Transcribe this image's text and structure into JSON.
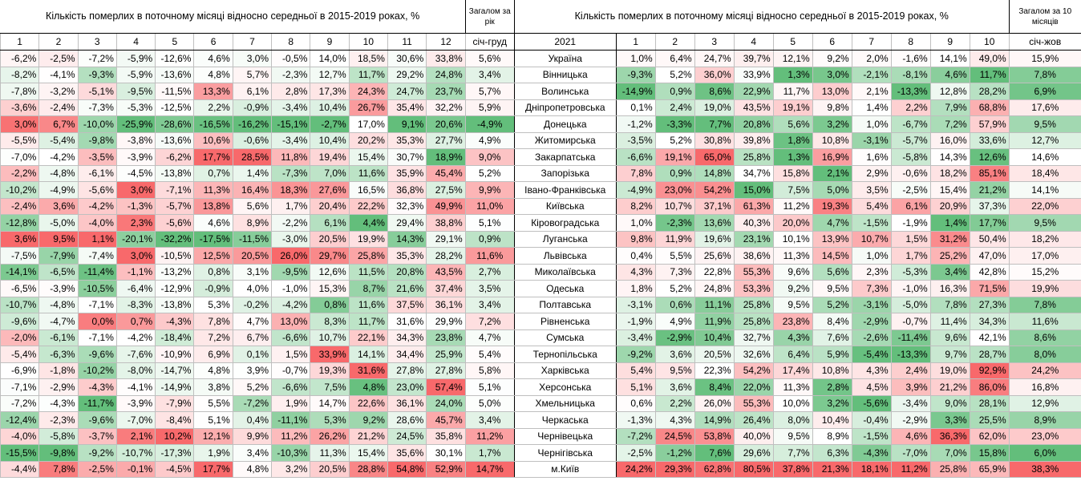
{
  "left_header": {
    "title": "Кількість померлих в поточному місяці відносно середньої в 2015-2019 роках, %",
    "total_title": "Загалом за рік",
    "months": [
      "1",
      "2",
      "3",
      "4",
      "5",
      "6",
      "7",
      "8",
      "9",
      "10",
      "11",
      "12"
    ],
    "total_sub": "січ-груд"
  },
  "region_header": "2021",
  "right_header": {
    "title": "Кількість померлих в поточному місяці відносно середньої в 2015-2019 роках, %",
    "total_title": "Загалом за 10 місяців",
    "months": [
      "1",
      "2",
      "3",
      "4",
      "5",
      "6",
      "7",
      "8",
      "9",
      "10"
    ],
    "total_sub": "січ-жов"
  },
  "rows": [
    {
      "left": [
        "-6,2%",
        "-2,5%",
        "-7,2%",
        "-5,9%",
        "-12,6%",
        "4,6%",
        "3,0%",
        "-0,5%",
        "14,0%",
        "18,5%",
        "30,6%",
        "33,8%",
        "5,6%"
      ],
      "region": "Україна",
      "right": [
        "1,0%",
        "6,4%",
        "24,7%",
        "39,7%",
        "12,1%",
        "9,2%",
        "2,0%",
        "-1,6%",
        "14,1%",
        "49,0%",
        "15,9%"
      ]
    },
    {
      "left": [
        "-8,2%",
        "-4,1%",
        "-9,3%",
        "-5,9%",
        "-13,6%",
        "4,8%",
        "5,7%",
        "-2,3%",
        "12,7%",
        "11,7%",
        "29,2%",
        "24,8%",
        "3,4%"
      ],
      "region": "Вінницька",
      "right": [
        "-9,3%",
        "5,2%",
        "36,0%",
        "33,9%",
        "1,3%",
        "3,0%",
        "-2,1%",
        "-8,1%",
        "4,6%",
        "11,7%",
        "7,8%"
      ]
    },
    {
      "left": [
        "-7,8%",
        "-3,2%",
        "-5,1%",
        "-9,5%",
        "-11,5%",
        "13,3%",
        "6,1%",
        "2,8%",
        "17,3%",
        "24,3%",
        "24,7%",
        "23,7%",
        "5,7%"
      ],
      "region": "Волинська",
      "right": [
        "-14,9%",
        "0,9%",
        "8,6%",
        "22,9%",
        "11,7%",
        "13,0%",
        "2,1%",
        "-13,3%",
        "12,8%",
        "28,2%",
        "6,9%"
      ]
    },
    {
      "left": [
        "-3,6%",
        "-2,4%",
        "-7,3%",
        "-5,3%",
        "-12,5%",
        "2,2%",
        "-0,9%",
        "-3,4%",
        "10,4%",
        "26,7%",
        "35,4%",
        "32,2%",
        "5,9%"
      ],
      "region": "Дніпропетровська",
      "right": [
        "0,1%",
        "2,4%",
        "19,0%",
        "43,5%",
        "19,1%",
        "9,8%",
        "1,4%",
        "2,2%",
        "7,9%",
        "68,8%",
        "17,6%"
      ]
    },
    {
      "left": [
        "3,0%",
        "6,7%",
        "-10,0%",
        "-25,9%",
        "-28,6%",
        "-16,5%",
        "-16,2%",
        "-15,1%",
        "-2,7%",
        "17,0%",
        "9,1%",
        "20,6%",
        "-4,9%"
      ],
      "region": "Донецька",
      "right": [
        "-1,2%",
        "-3,3%",
        "7,7%",
        "20,8%",
        "5,6%",
        "3,2%",
        "1,0%",
        "-6,7%",
        "7,2%",
        "57,9%",
        "9,5%"
      ]
    },
    {
      "left": [
        "-5,5%",
        "-5,4%",
        "-9,8%",
        "-3,8%",
        "-13,6%",
        "10,6%",
        "-0,6%",
        "-3,4%",
        "10,4%",
        "20,2%",
        "35,3%",
        "27,7%",
        "4,9%"
      ],
      "region": "Житомирська",
      "right": [
        "-3,5%",
        "5,2%",
        "30,8%",
        "39,8%",
        "1,8%",
        "10,8%",
        "-3,1%",
        "-5,7%",
        "16,0%",
        "33,6%",
        "12,7%"
      ]
    },
    {
      "left": [
        "-7,0%",
        "-4,2%",
        "-3,5%",
        "-3,9%",
        "-6,2%",
        "17,7%",
        "28,5%",
        "11,8%",
        "19,4%",
        "15,4%",
        "30,7%",
        "18,9%",
        "9,0%"
      ],
      "region": "Закарпатська",
      "right": [
        "-6,6%",
        "19,1%",
        "65,0%",
        "25,8%",
        "1,3%",
        "16,9%",
        "1,6%",
        "-5,8%",
        "14,3%",
        "12,6%",
        "14,6%"
      ]
    },
    {
      "left": [
        "-2,2%",
        "-4,8%",
        "-6,1%",
        "-4,5%",
        "-13,8%",
        "0,7%",
        "1,4%",
        "-7,3%",
        "7,0%",
        "11,6%",
        "35,9%",
        "45,4%",
        "5,2%"
      ],
      "region": "Запорізька",
      "right": [
        "7,8%",
        "0,9%",
        "14,8%",
        "34,7%",
        "15,8%",
        "2,1%",
        "2,9%",
        "-0,6%",
        "18,2%",
        "85,1%",
        "18,4%"
      ]
    },
    {
      "left": [
        "-10,2%",
        "-4,9%",
        "-5,6%",
        "3,0%",
        "-7,1%",
        "11,3%",
        "16,4%",
        "18,3%",
        "27,6%",
        "16,5%",
        "36,8%",
        "27,5%",
        "9,9%"
      ],
      "region": "Івано-Франківська",
      "right": [
        "-4,9%",
        "23,0%",
        "54,2%",
        "15,0%",
        "7,5%",
        "5,0%",
        "3,5%",
        "-2,5%",
        "15,4%",
        "21,2%",
        "14,1%"
      ]
    },
    {
      "left": [
        "-2,4%",
        "3,6%",
        "-4,2%",
        "-1,3%",
        "-5,7%",
        "13,8%",
        "5,6%",
        "1,7%",
        "20,4%",
        "22,2%",
        "32,3%",
        "49,9%",
        "11,0%"
      ],
      "region": "Київська",
      "right": [
        "8,2%",
        "10,7%",
        "37,1%",
        "61,3%",
        "11,2%",
        "19,3%",
        "5,4%",
        "6,1%",
        "20,9%",
        "37,3%",
        "22,0%"
      ]
    },
    {
      "left": [
        "-12,8%",
        "-5,0%",
        "-4,0%",
        "2,3%",
        "-5,6%",
        "4,6%",
        "8,9%",
        "-2,2%",
        "6,1%",
        "4,4%",
        "29,4%",
        "38,8%",
        "5,1%"
      ],
      "region": "Кіровоградська",
      "right": [
        "1,0%",
        "-2,3%",
        "13,6%",
        "40,3%",
        "20,0%",
        "4,7%",
        "-1,5%",
        "-1,9%",
        "1,4%",
        "17,7%",
        "9,5%"
      ]
    },
    {
      "left": [
        "3,6%",
        "9,5%",
        "1,1%",
        "-20,1%",
        "-32,2%",
        "-17,5%",
        "-11,5%",
        "-3,0%",
        "20,5%",
        "19,9%",
        "14,3%",
        "29,1%",
        "0,9%"
      ],
      "region": "Луганська",
      "right": [
        "9,8%",
        "11,9%",
        "19,6%",
        "23,1%",
        "10,1%",
        "13,9%",
        "10,7%",
        "1,5%",
        "31,2%",
        "50,4%",
        "18,2%"
      ]
    },
    {
      "left": [
        "-7,5%",
        "-7,9%",
        "-7,4%",
        "3,0%",
        "-10,5%",
        "12,5%",
        "20,5%",
        "26,0%",
        "29,7%",
        "25,8%",
        "35,3%",
        "28,2%",
        "11,6%"
      ],
      "region": "Львівська",
      "right": [
        "0,4%",
        "5,5%",
        "25,6%",
        "38,6%",
        "11,3%",
        "14,5%",
        "1,0%",
        "1,7%",
        "25,2%",
        "47,0%",
        "17,0%"
      ]
    },
    {
      "left": [
        "-14,1%",
        "-6,5%",
        "-11,4%",
        "-1,1%",
        "-13,2%",
        "0,8%",
        "3,1%",
        "-9,5%",
        "12,6%",
        "11,5%",
        "20,8%",
        "43,5%",
        "2,7%"
      ],
      "region": "Миколаївська",
      "right": [
        "4,3%",
        "7,3%",
        "22,8%",
        "55,3%",
        "9,6%",
        "5,6%",
        "2,3%",
        "-5,3%",
        "3,4%",
        "42,8%",
        "15,2%"
      ]
    },
    {
      "left": [
        "-6,5%",
        "-3,9%",
        "-10,5%",
        "-6,4%",
        "-12,9%",
        "-0,9%",
        "4,0%",
        "-1,0%",
        "15,3%",
        "8,7%",
        "21,6%",
        "37,4%",
        "3,5%"
      ],
      "region": "Одеська",
      "right": [
        "1,8%",
        "5,2%",
        "24,8%",
        "53,3%",
        "9,2%",
        "9,5%",
        "7,3%",
        "-1,0%",
        "16,3%",
        "71,5%",
        "19,9%"
      ]
    },
    {
      "left": [
        "-10,7%",
        "-4,8%",
        "-7,1%",
        "-8,3%",
        "-13,8%",
        "5,3%",
        "-0,2%",
        "-4,2%",
        "0,8%",
        "11,6%",
        "37,5%",
        "36,1%",
        "3,4%"
      ],
      "region": "Полтавська",
      "right": [
        "-3,1%",
        "0,6%",
        "11,1%",
        "25,8%",
        "9,5%",
        "5,2%",
        "-3,1%",
        "-5,0%",
        "7,8%",
        "27,3%",
        "7,8%"
      ]
    },
    {
      "left": [
        "-9,6%",
        "-4,7%",
        "0,0%",
        "0,7%",
        "-4,3%",
        "7,8%",
        "4,7%",
        "13,0%",
        "8,3%",
        "11,7%",
        "31,6%",
        "29,9%",
        "7,2%"
      ],
      "region": "Рівненська",
      "right": [
        "-1,9%",
        "4,9%",
        "11,9%",
        "25,8%",
        "23,8%",
        "8,4%",
        "-2,9%",
        "-0,7%",
        "11,4%",
        "34,3%",
        "11,6%"
      ]
    },
    {
      "left": [
        "-2,0%",
        "-6,1%",
        "-7,1%",
        "-4,2%",
        "-18,4%",
        "7,2%",
        "6,7%",
        "-6,6%",
        "10,7%",
        "22,1%",
        "34,3%",
        "23,8%",
        "4,7%"
      ],
      "region": "Сумська",
      "right": [
        "-3,4%",
        "-2,9%",
        "10,4%",
        "32,7%",
        "4,3%",
        "7,6%",
        "-2,6%",
        "-11,4%",
        "9,6%",
        "42,1%",
        "8,6%"
      ]
    },
    {
      "left": [
        "-5,4%",
        "-6,3%",
        "-9,6%",
        "-7,6%",
        "-10,9%",
        "6,9%",
        "0,1%",
        "1,5%",
        "33,9%",
        "14,1%",
        "34,4%",
        "25,9%",
        "5,4%"
      ],
      "region": "Тернопільська",
      "right": [
        "-9,2%",
        "3,6%",
        "20,5%",
        "32,6%",
        "6,4%",
        "5,9%",
        "-5,4%",
        "-13,3%",
        "9,7%",
        "28,7%",
        "8,0%"
      ]
    },
    {
      "left": [
        "-6,9%",
        "-1,8%",
        "-10,2%",
        "-8,0%",
        "-14,7%",
        "4,8%",
        "3,9%",
        "-0,7%",
        "19,3%",
        "31,6%",
        "27,8%",
        "27,8%",
        "5,8%"
      ],
      "region": "Харківська",
      "right": [
        "5,4%",
        "9,5%",
        "22,3%",
        "54,2%",
        "17,4%",
        "10,8%",
        "4,3%",
        "2,4%",
        "19,0%",
        "92,9%",
        "24,2%"
      ]
    },
    {
      "left": [
        "-7,1%",
        "-2,9%",
        "-4,3%",
        "-4,1%",
        "-14,9%",
        "3,8%",
        "5,2%",
        "-6,6%",
        "7,5%",
        "4,8%",
        "23,0%",
        "57,4%",
        "5,1%"
      ],
      "region": "Херсонська",
      "right": [
        "5,1%",
        "3,6%",
        "8,4%",
        "22,0%",
        "11,3%",
        "2,8%",
        "4,5%",
        "3,9%",
        "21,2%",
        "86,0%",
        "16,8%"
      ]
    },
    {
      "left": [
        "-7,2%",
        "-4,3%",
        "-11,7%",
        "-3,9%",
        "-7,9%",
        "5,5%",
        "-7,2%",
        "1,9%",
        "14,7%",
        "22,6%",
        "36,1%",
        "24,0%",
        "5,0%"
      ],
      "region": "Хмельницька",
      "right": [
        "0,6%",
        "2,2%",
        "26,0%",
        "55,3%",
        "10,0%",
        "3,2%",
        "-5,6%",
        "-3,4%",
        "9,0%",
        "28,1%",
        "12,9%"
      ]
    },
    {
      "left": [
        "-12,4%",
        "-2,3%",
        "-9,6%",
        "-7,0%",
        "-8,4%",
        "5,1%",
        "0,4%",
        "-11,1%",
        "5,3%",
        "9,2%",
        "28,6%",
        "45,7%",
        "3,4%"
      ],
      "region": "Черкаська",
      "right": [
        "-1,3%",
        "4,3%",
        "14,9%",
        "26,4%",
        "8,0%",
        "10,4%",
        "-0,4%",
        "-2,9%",
        "3,3%",
        "25,5%",
        "8,9%"
      ]
    },
    {
      "left": [
        "-4,0%",
        "-5,8%",
        "-3,7%",
        "2,1%",
        "10,2%",
        "12,1%",
        "9,9%",
        "11,2%",
        "26,2%",
        "21,2%",
        "24,5%",
        "35,8%",
        "11,2%"
      ],
      "region": "Чернівецька",
      "right": [
        "-7,2%",
        "24,5%",
        "53,8%",
        "40,0%",
        "9,5%",
        "8,9%",
        "-1,5%",
        "4,6%",
        "36,3%",
        "62,0%",
        "23,0%"
      ]
    },
    {
      "left": [
        "-15,5%",
        "-9,8%",
        "-9,2%",
        "-10,7%",
        "-17,3%",
        "1,9%",
        "3,4%",
        "-10,3%",
        "11,3%",
        "15,4%",
        "35,6%",
        "30,1%",
        "1,7%"
      ],
      "region": "Чернігівська",
      "right": [
        "-2,5%",
        "-1,2%",
        "7,6%",
        "29,6%",
        "7,7%",
        "6,3%",
        "-4,3%",
        "-7,0%",
        "7,0%",
        "15,8%",
        "6,0%"
      ]
    },
    {
      "left": [
        "-4,4%",
        "7,8%",
        "-2,5%",
        "-0,1%",
        "-4,5%",
        "17,7%",
        "4,8%",
        "3,2%",
        "20,5%",
        "28,8%",
        "54,8%",
        "52,9%",
        "14,7%"
      ],
      "region": "м.Київ",
      "right": [
        "24,2%",
        "29,3%",
        "62,8%",
        "80,5%",
        "37,8%",
        "21,3%",
        "18,1%",
        "11,2%",
        "25,8%",
        "65,9%",
        "38,3%"
      ]
    }
  ]
}
